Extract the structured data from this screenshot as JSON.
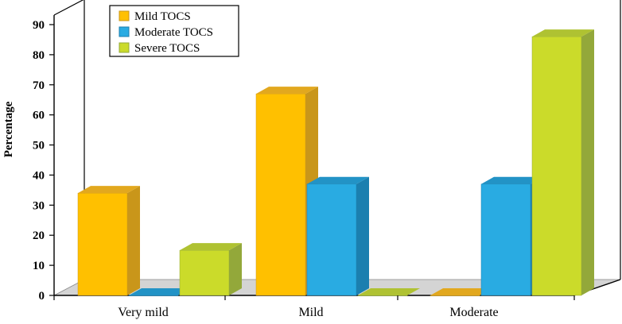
{
  "chart_data": {
    "type": "bar",
    "title": "",
    "xlabel": "",
    "ylabel": "Percentage",
    "ylim": [
      0,
      90
    ],
    "yticks": [
      0,
      10,
      20,
      30,
      40,
      50,
      60,
      70,
      80,
      90
    ],
    "categories": [
      "Very mild",
      "Mild",
      "Moderate"
    ],
    "series": [
      {
        "name": "Mild TOCS",
        "values": [
          34,
          67,
          0
        ]
      },
      {
        "name": "Moderate TOCS",
        "values": [
          0,
          37,
          37
        ]
      },
      {
        "name": "Severe TOCS",
        "values": [
          15,
          0,
          86
        ]
      }
    ],
    "legend_position": "top-left",
    "style": "3d-bar",
    "colors": {
      "Mild TOCS": {
        "front": "#FFC000",
        "side": "#C9961A",
        "top": "#E2A81E"
      },
      "Moderate TOCS": {
        "front": "#29ABE2",
        "side": "#1B7FAF",
        "top": "#2293C6"
      },
      "Severe TOCS": {
        "front": "#CBDB2A",
        "side": "#93A83A",
        "top": "#AFC232"
      }
    },
    "grid": false
  }
}
